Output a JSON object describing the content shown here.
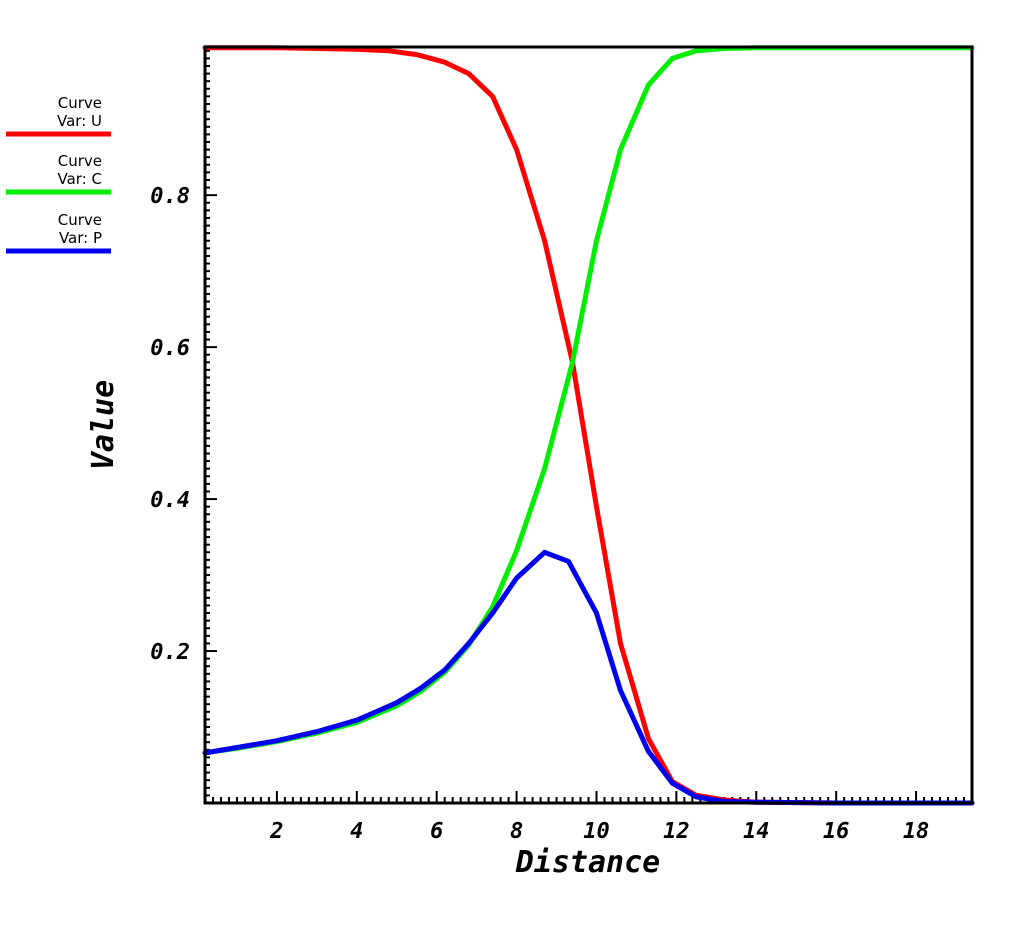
{
  "chart_data": {
    "type": "line",
    "title": "",
    "xlabel": "Distance",
    "ylabel": "Value",
    "xlim": [
      0.2,
      19.4
    ],
    "ylim": [
      0.0,
      0.995
    ],
    "xticks": [
      2,
      4,
      6,
      8,
      10,
      12,
      14,
      16,
      18
    ],
    "xtick_labels": [
      "2",
      "4",
      "6",
      "8",
      "10",
      "12",
      "14",
      "16",
      "18"
    ],
    "yticks": [
      0.2,
      0.4,
      0.6,
      0.8
    ],
    "ytick_labels": [
      "0.2",
      "0.4",
      "0.6",
      "0.8"
    ],
    "grid": false,
    "legend_position": "left",
    "series": [
      {
        "name": "Var: U",
        "header": "Curve",
        "color": "#ff0000",
        "x": [
          0.2,
          1.0,
          2.0,
          3.0,
          4.0,
          4.8,
          5.5,
          6.2,
          6.8,
          7.4,
          8.0,
          8.7,
          9.4,
          10.0,
          10.6,
          11.3,
          11.9,
          12.5,
          13.2,
          14.0,
          16.0,
          18.0,
          19.4
        ],
        "y": [
          0.994,
          0.994,
          0.994,
          0.993,
          0.992,
          0.99,
          0.985,
          0.975,
          0.96,
          0.93,
          0.86,
          0.74,
          0.58,
          0.39,
          0.21,
          0.085,
          0.028,
          0.01,
          0.004,
          0.001,
          0.0,
          0.0,
          0.0
        ]
      },
      {
        "name": "Var: C",
        "header": "Curve",
        "color": "#00ee00",
        "x": [
          0.2,
          1.0,
          2.0,
          3.0,
          4.0,
          5.0,
          5.6,
          6.2,
          6.8,
          7.4,
          8.0,
          8.7,
          9.4,
          10.0,
          10.6,
          11.3,
          11.9,
          12.5,
          13.2,
          14.0,
          16.0,
          18.0,
          19.4
        ],
        "y": [
          0.066,
          0.072,
          0.081,
          0.092,
          0.106,
          0.128,
          0.147,
          0.172,
          0.208,
          0.258,
          0.332,
          0.44,
          0.58,
          0.74,
          0.86,
          0.945,
          0.98,
          0.99,
          0.993,
          0.994,
          0.994,
          0.994,
          0.994
        ]
      },
      {
        "name": "Var: P",
        "header": "Curve",
        "color": "#0000ee",
        "x": [
          0.2,
          1.0,
          2.0,
          3.0,
          4.0,
          5.0,
          5.6,
          6.2,
          6.8,
          7.4,
          8.0,
          8.7,
          9.3,
          10.0,
          10.6,
          11.3,
          11.9,
          12.5,
          13.2,
          14.0,
          16.0,
          18.0,
          19.4
        ],
        "y": [
          0.066,
          0.073,
          0.082,
          0.094,
          0.109,
          0.132,
          0.151,
          0.175,
          0.21,
          0.25,
          0.296,
          0.33,
          0.318,
          0.25,
          0.148,
          0.068,
          0.026,
          0.008,
          0.002,
          0.001,
          0.0,
          0.0,
          0.0
        ]
      }
    ]
  }
}
